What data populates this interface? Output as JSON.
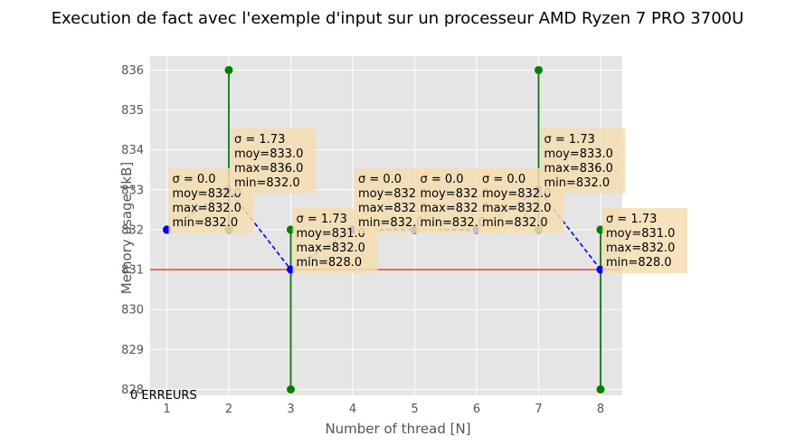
{
  "chart_data": {
    "type": "scatter",
    "title": "Execution de fact avec l'exemple d'input sur un processeur AMD Ryzen 7 PRO 3700U",
    "xlabel": "Number of thread [N]",
    "ylabel": "Memory usage [kB]",
    "xlim": [
      0.73,
      8.35
    ],
    "ylim": [
      827.85,
      836.35
    ],
    "x_ticks": [
      "1",
      "2",
      "3",
      "4",
      "5",
      "6",
      "7",
      "8"
    ],
    "y_ticks": [
      "828",
      "829",
      "830",
      "831",
      "832",
      "833",
      "834",
      "835",
      "836"
    ],
    "grid": true,
    "footer_note": "0 ERREURS",
    "reference_line": {
      "y": 831,
      "color": "#E24A33"
    },
    "mean_series": {
      "x": [
        1,
        2,
        3,
        4,
        5,
        6,
        7,
        8
      ],
      "y": [
        832.0,
        833.0,
        831.0,
        832.0,
        832.0,
        832.0,
        833.0,
        831.0
      ],
      "color": "#0000ff",
      "style": "dashed"
    },
    "runs": [
      {
        "x": 1,
        "values": [
          832,
          832,
          832
        ]
      },
      {
        "x": 2,
        "values": [
          836,
          832,
          832
        ]
      },
      {
        "x": 3,
        "values": [
          828,
          832,
          832
        ]
      },
      {
        "x": 4,
        "values": [
          832,
          832,
          832
        ]
      },
      {
        "x": 5,
        "values": [
          832,
          832,
          832
        ]
      },
      {
        "x": 6,
        "values": [
          832,
          832,
          832
        ]
      },
      {
        "x": 7,
        "values": [
          836,
          832,
          832
        ]
      },
      {
        "x": 8,
        "values": [
          828,
          832,
          832
        ]
      }
    ],
    "runs_color": "#008000",
    "annotations": [
      {
        "x": 1,
        "y": 832.0,
        "lines": [
          "σ = 0.0",
          "moy=832.0",
          "max=832.0",
          "min=832.0"
        ]
      },
      {
        "x": 2,
        "y": 833.0,
        "lines": [
          "σ = 1.73",
          "moy=833.0",
          "max=836.0",
          "min=832.0"
        ]
      },
      {
        "x": 3,
        "y": 831.0,
        "lines": [
          "σ = 1.73",
          "moy=831.0",
          "max=832.0",
          "min=828.0"
        ]
      },
      {
        "x": 4,
        "y": 832.0,
        "lines": [
          "σ = 0.0",
          "moy=832.0",
          "max=832.0",
          "min=832.0"
        ]
      },
      {
        "x": 5,
        "y": 832.0,
        "lines": [
          "σ = 0.0",
          "moy=832.0",
          "max=832.0",
          "min=832.0"
        ]
      },
      {
        "x": 6,
        "y": 832.0,
        "lines": [
          "σ = 0.0",
          "moy=832.0",
          "max=832.0",
          "min=832.0"
        ]
      },
      {
        "x": 7,
        "y": 833.0,
        "lines": [
          "σ = 1.73",
          "moy=833.0",
          "max=836.0",
          "min=832.0"
        ]
      },
      {
        "x": 8,
        "y": 831.0,
        "lines": [
          "σ = 1.73",
          "moy=831.0",
          "max=832.0",
          "min=828.0"
        ]
      }
    ]
  }
}
